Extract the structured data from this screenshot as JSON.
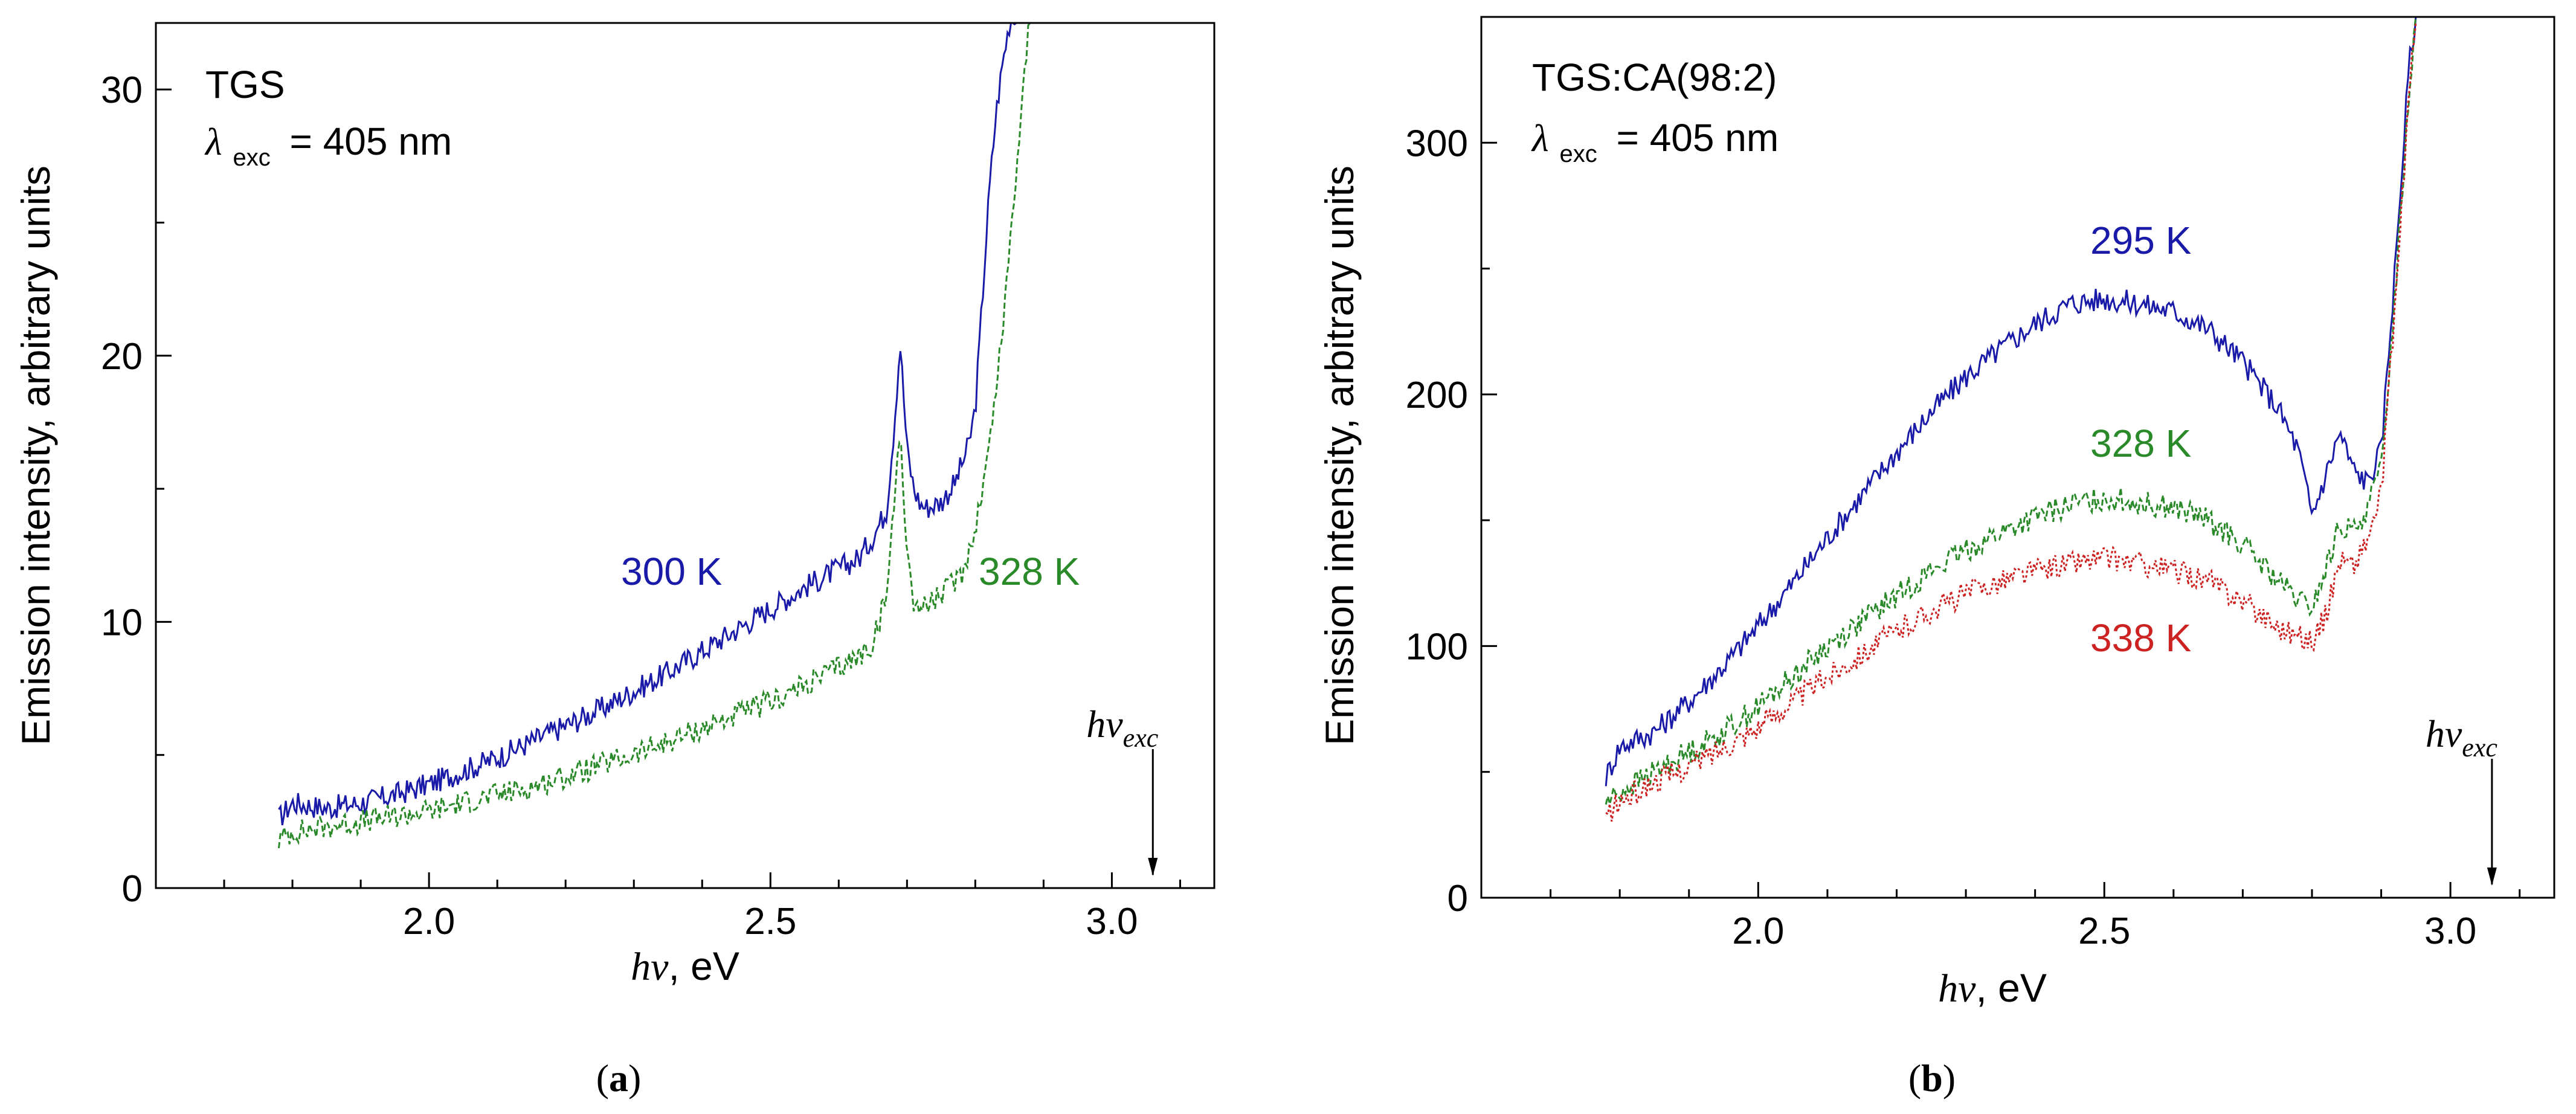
{
  "chart_data": [
    {
      "panel": "a",
      "type": "line",
      "sample": "TGS",
      "excitation": {
        "symbol": "λ",
        "subscript": "exc",
        "value": "= 405 nm"
      },
      "xlabel": {
        "symbol": "hν",
        "unit": ", eV"
      },
      "ylabel": "Emission intensity, arbitrary units",
      "xlim": [
        1.6,
        3.15
      ],
      "ylim": [
        0,
        32.5
      ],
      "xticks": [
        2.0,
        2.5,
        3.0
      ],
      "xtick_labels": [
        "2.0",
        "2.5",
        "3.0"
      ],
      "yticks": [
        0,
        10,
        20,
        30
      ],
      "ytick_labels": [
        "0",
        "10",
        "20",
        "30"
      ],
      "marker": {
        "x": 3.06,
        "label_base": "hν",
        "label_sub": "exc"
      },
      "series": [
        {
          "name": "300 K",
          "color": "#1a1aa8",
          "style": "solid",
          "x": [
            1.78,
            1.8,
            1.85,
            1.9,
            1.95,
            2.0,
            2.05,
            2.1,
            2.15,
            2.2,
            2.25,
            2.3,
            2.35,
            2.4,
            2.45,
            2.5,
            2.55,
            2.6,
            2.63,
            2.65,
            2.67,
            2.68,
            2.69,
            2.7,
            2.71,
            2.72,
            2.73,
            2.75,
            2.77,
            2.79,
            2.8,
            2.81,
            2.82,
            2.83,
            2.84,
            2.85,
            2.86
          ],
          "y": [
            2.6,
            3.2,
            3.0,
            3.2,
            3.5,
            3.9,
            4.4,
            4.9,
            5.5,
            6.1,
            6.7,
            7.4,
            8.1,
            8.9,
            9.7,
            10.5,
            11.3,
            12.0,
            12.4,
            13.2,
            14.2,
            17.0,
            20.5,
            16.5,
            15.0,
            14.4,
            14.3,
            14.5,
            15.2,
            16.6,
            18.0,
            22.0,
            26.0,
            29.0,
            31.0,
            32.5,
            33.0
          ]
        },
        {
          "name": "328 K",
          "color": "#2a8a2a",
          "style": "dashed",
          "x": [
            1.78,
            1.8,
            1.85,
            1.9,
            1.95,
            2.0,
            2.05,
            2.1,
            2.15,
            2.2,
            2.25,
            2.3,
            2.35,
            2.4,
            2.45,
            2.5,
            2.55,
            2.6,
            2.63,
            2.65,
            2.67,
            2.68,
            2.69,
            2.7,
            2.71,
            2.72,
            2.75,
            2.78,
            2.8,
            2.82,
            2.84,
            2.86,
            2.88
          ],
          "y": [
            1.8,
            2.1,
            2.3,
            2.5,
            2.7,
            2.9,
            3.2,
            3.5,
            3.8,
            4.2,
            4.6,
            5.0,
            5.5,
            6.0,
            6.5,
            7.0,
            7.6,
            8.3,
            8.7,
            9.2,
            11.0,
            14.0,
            17.5,
            12.5,
            10.8,
            10.5,
            11.0,
            11.8,
            13.5,
            16.5,
            21.0,
            27.0,
            33.0
          ]
        }
      ]
    },
    {
      "panel": "b",
      "type": "line",
      "sample": "TGS:CA(98:2)",
      "excitation": {
        "symbol": "λ",
        "subscript": "exc",
        "value": "= 405 nm"
      },
      "xlabel": {
        "symbol": "hν",
        "unit": ", eV"
      },
      "ylabel": "Emission intensity, arbitrary units",
      "xlim": [
        1.6,
        3.15
      ],
      "ylim": [
        0,
        350
      ],
      "xticks": [
        2.0,
        2.5,
        3.0
      ],
      "xtick_labels": [
        "2.0",
        "2.5",
        "3.0"
      ],
      "yticks": [
        0,
        100,
        200,
        300
      ],
      "ytick_labels": [
        "0",
        "100",
        "200",
        "300"
      ],
      "marker": {
        "x": 3.06,
        "label_base": "hν",
        "label_sub": "exc"
      },
      "series": [
        {
          "name": "295 K",
          "color": "#1a1aa8",
          "style": "solid",
          "x": [
            1.78,
            1.8,
            1.85,
            1.9,
            1.95,
            2.0,
            2.05,
            2.1,
            2.15,
            2.2,
            2.25,
            2.3,
            2.35,
            2.4,
            2.45,
            2.5,
            2.55,
            2.6,
            2.65,
            2.7,
            2.75,
            2.78,
            2.8,
            2.82,
            2.84,
            2.86,
            2.88,
            2.9,
            2.92,
            2.94,
            2.95
          ],
          "y": [
            48,
            60,
            66,
            78,
            92,
            108,
            125,
            143,
            160,
            177,
            193,
            207,
            218,
            228,
            236,
            238,
            236,
            233,
            226,
            213,
            195,
            178,
            152,
            168,
            185,
            170,
            165,
            178,
            250,
            330,
            350
          ]
        },
        {
          "name": "328 K",
          "color": "#2a8a2a",
          "style": "dashed",
          "x": [
            1.78,
            1.8,
            1.85,
            1.9,
            1.95,
            2.0,
            2.05,
            2.1,
            2.15,
            2.2,
            2.25,
            2.3,
            2.35,
            2.4,
            2.45,
            2.5,
            2.55,
            2.6,
            2.65,
            2.7,
            2.75,
            2.78,
            2.8,
            2.82,
            2.84,
            2.86,
            2.88,
            2.9,
            2.92,
            2.94,
            2.95
          ],
          "y": [
            38,
            42,
            50,
            58,
            66,
            76,
            88,
            100,
            110,
            120,
            130,
            138,
            145,
            151,
            156,
            159,
            157,
            155,
            150,
            140,
            126,
            118,
            115,
            130,
            148,
            145,
            155,
            170,
            240,
            320,
            350
          ]
        },
        {
          "name": "338 K",
          "color": "#cc2222",
          "style": "dotted",
          "x": [
            1.78,
            1.8,
            1.85,
            1.9,
            1.95,
            2.0,
            2.05,
            2.1,
            2.15,
            2.2,
            2.25,
            2.3,
            2.35,
            2.4,
            2.45,
            2.5,
            2.55,
            2.6,
            2.65,
            2.7,
            2.75,
            2.78,
            2.8,
            2.82,
            2.84,
            2.86,
            2.88,
            2.9,
            2.92,
            2.94,
            2.95
          ],
          "y": [
            32,
            38,
            46,
            52,
            60,
            68,
            78,
            88,
            97,
            106,
            114,
            121,
            126,
            130,
            133,
            135,
            133,
            130,
            126,
            118,
            108,
            104,
            102,
            112,
            135,
            132,
            142,
            160,
            235,
            318,
            350
          ]
        }
      ]
    }
  ]
}
